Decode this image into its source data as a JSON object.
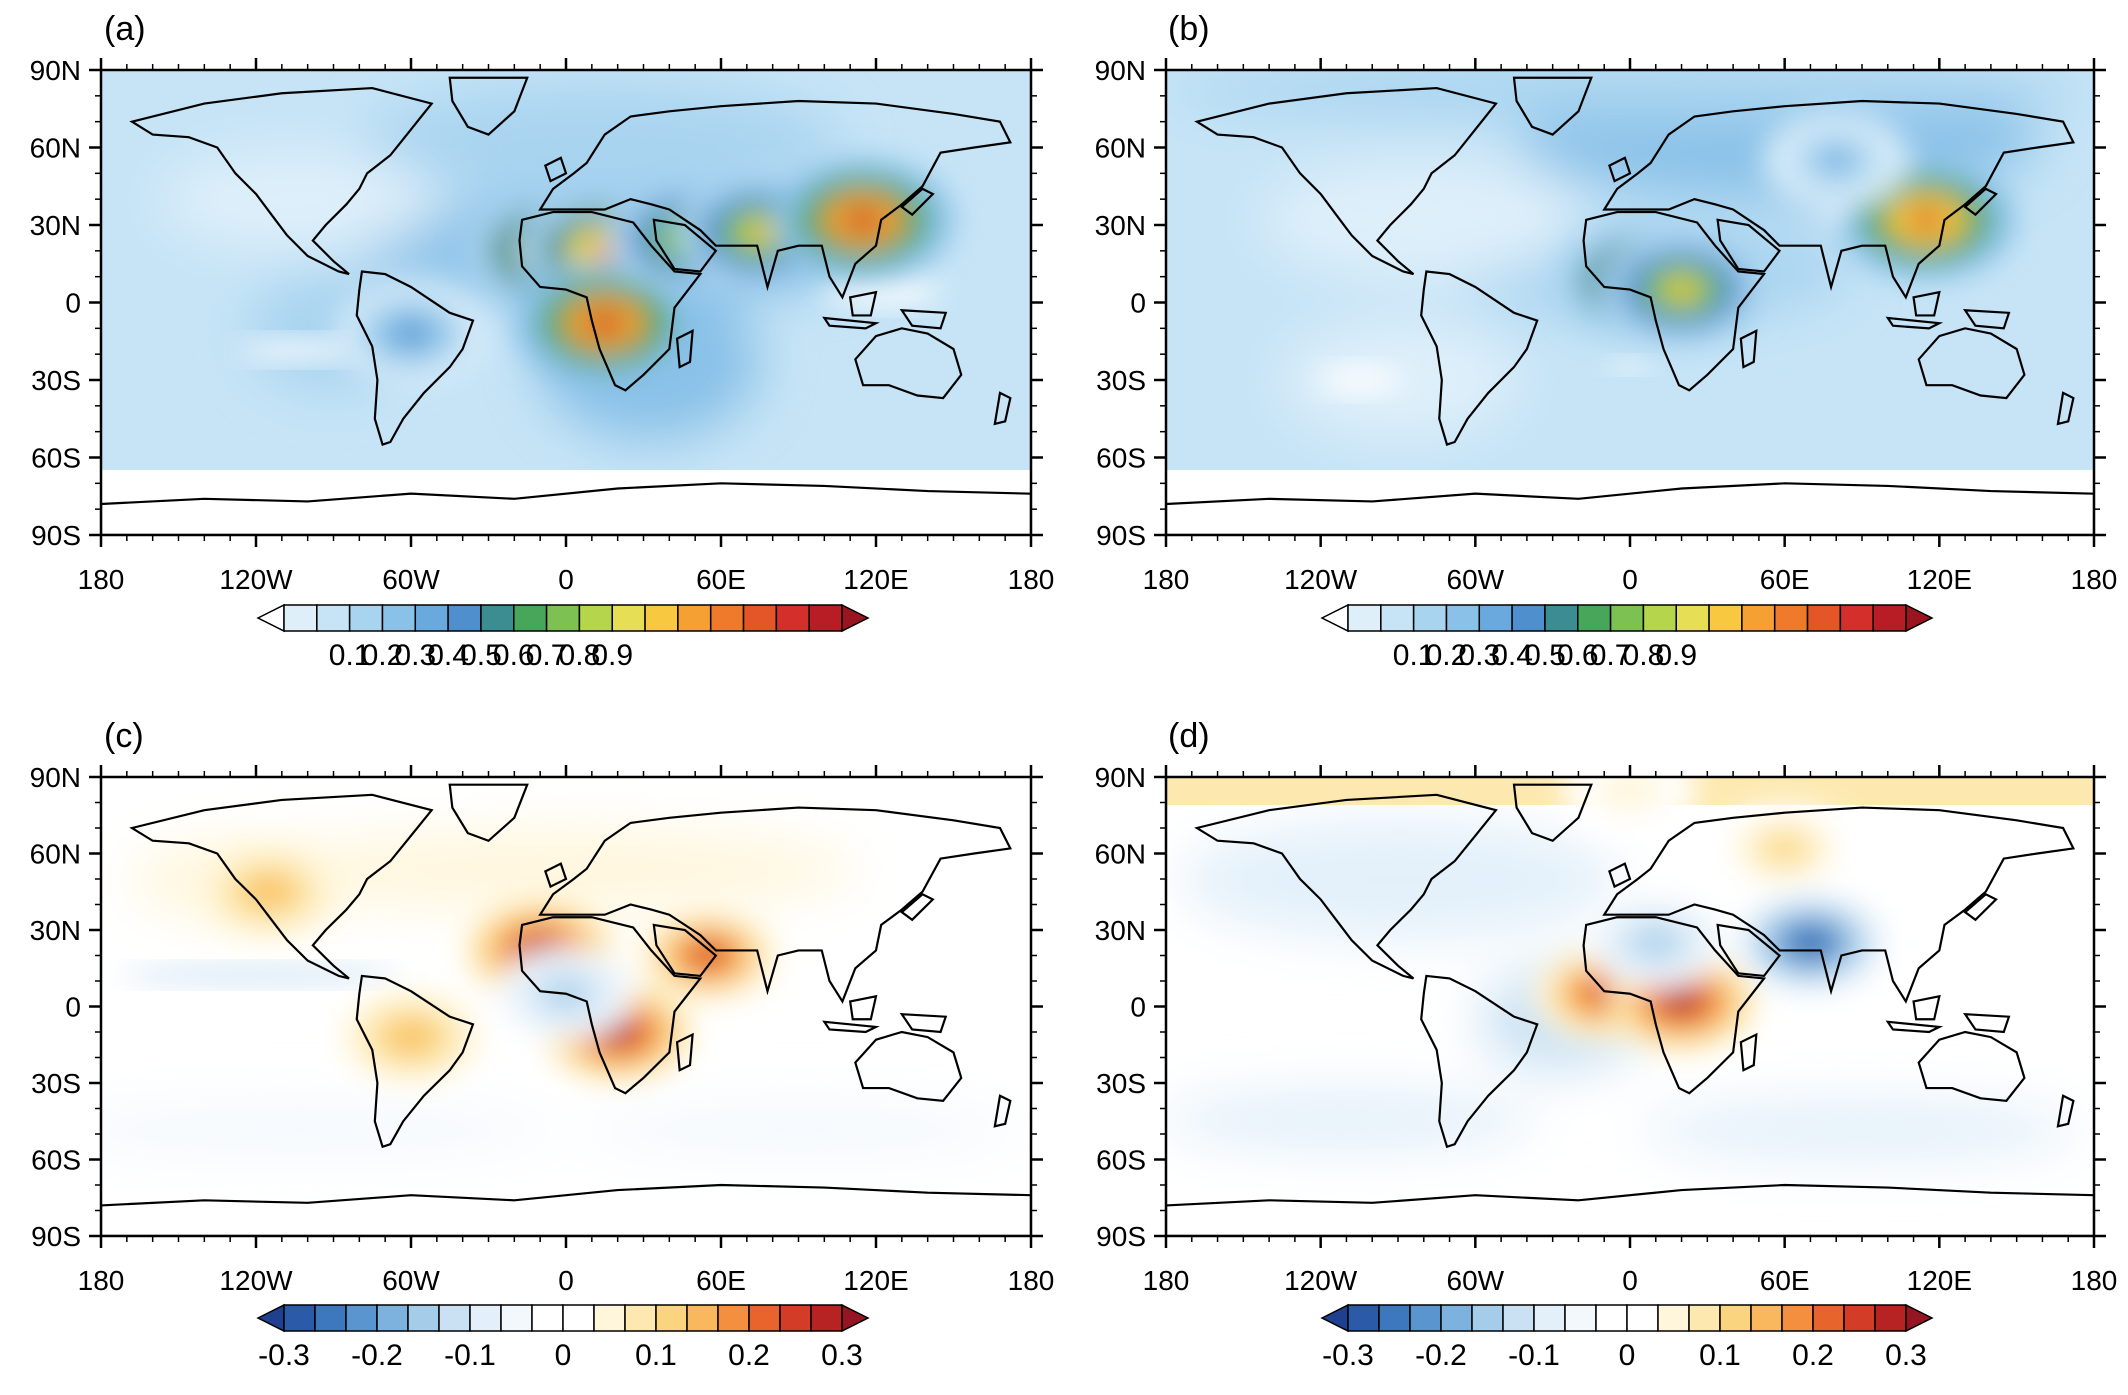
{
  "chart_data": [
    {
      "type": "heatmap",
      "panel_label": "(a)",
      "xticks": [
        "180",
        "120W",
        "60W",
        "0",
        "60E",
        "120E",
        "180"
      ],
      "yticks": [
        "90N",
        "60N",
        "30N",
        "0",
        "30S",
        "60S",
        "90S"
      ],
      "xlim": [
        -180,
        180
      ],
      "ylim": [
        -90,
        90
      ],
      "colorbar": {
        "labels": [
          "0.1",
          "0.2",
          "0.3",
          "0.4",
          "0.5",
          "0.6",
          "0.7",
          "0.8",
          "0.9"
        ],
        "colors": [
          "#ffffff",
          "#deeffa",
          "#c6e4f6",
          "#a9d4f0",
          "#89c1e8",
          "#6aa9dd",
          "#4f8fce",
          "#3c8d92",
          "#48a65a",
          "#7cc151",
          "#b5d54c",
          "#e6df55",
          "#f8c840",
          "#f5a033",
          "#ef7a2b",
          "#e45527",
          "#d42f2a",
          "#b81d25",
          "#9b1520"
        ]
      },
      "hotspots": [
        {
          "lon": -5,
          "lat": 20,
          "value": 0.75
        },
        {
          "lon": 15,
          "lat": 20,
          "value": 0.7
        },
        {
          "lon": 15,
          "lat": -8,
          "value": 0.85
        },
        {
          "lon": 48,
          "lat": 25,
          "value": 0.6
        },
        {
          "lon": 75,
          "lat": 27,
          "value": 0.6
        },
        {
          "lon": 115,
          "lat": 32,
          "value": 0.85
        },
        {
          "lon": -60,
          "lat": -12,
          "value": 0.3
        }
      ]
    },
    {
      "type": "heatmap",
      "panel_label": "(b)",
      "xticks": [
        "180",
        "120W",
        "60W",
        "0",
        "60E",
        "120E",
        "180"
      ],
      "yticks": [
        "90N",
        "60N",
        "30N",
        "0",
        "30S",
        "60S",
        "90S"
      ],
      "xlim": [
        -180,
        180
      ],
      "ylim": [
        -90,
        90
      ],
      "colorbar": {
        "labels": [
          "0.1",
          "0.2",
          "0.3",
          "0.4",
          "0.5",
          "0.6",
          "0.7",
          "0.8",
          "0.9"
        ],
        "colors": [
          "#ffffff",
          "#deeffa",
          "#c6e4f6",
          "#a9d4f0",
          "#89c1e8",
          "#6aa9dd",
          "#4f8fce",
          "#3c8d92",
          "#48a65a",
          "#7cc151",
          "#b5d54c",
          "#e6df55",
          "#f8c840",
          "#f5a033",
          "#ef7a2b",
          "#e45527",
          "#d42f2a",
          "#b81d25",
          "#9b1520"
        ]
      },
      "hotspots": [
        {
          "lon": 5,
          "lat": 8,
          "value": 0.7
        },
        {
          "lon": 20,
          "lat": 5,
          "value": 0.6
        },
        {
          "lon": 115,
          "lat": 32,
          "value": 0.8
        },
        {
          "lon": 80,
          "lat": 55,
          "value": 0.25
        }
      ]
    },
    {
      "type": "heatmap",
      "panel_label": "(c)",
      "xticks": [
        "180",
        "120W",
        "60W",
        "0",
        "60E",
        "120E",
        "180"
      ],
      "yticks": [
        "90N",
        "60N",
        "30N",
        "0",
        "30S",
        "60S",
        "90S"
      ],
      "xlim": [
        -180,
        180
      ],
      "ylim": [
        -90,
        90
      ],
      "colorbar": {
        "labels": [
          "-0.3",
          "-0.2",
          "-0.1",
          "0",
          "0.1",
          "0.2",
          "0.3"
        ],
        "colors": [
          "#1f3f8f",
          "#2a5aa8",
          "#3d77bd",
          "#5b95cf",
          "#7db1de",
          "#a5cce9",
          "#c9e1f3",
          "#e3f0fa",
          "#f3f8fd",
          "#ffffff",
          "#ffffff",
          "#fff6dc",
          "#fde9b0",
          "#fbd47f",
          "#f9b85d",
          "#f38f3e",
          "#e8642d",
          "#d33d27",
          "#b72223",
          "#951522"
        ]
      },
      "hotspots": [
        {
          "lon": -10,
          "lat": 22,
          "value": 0.3
        },
        {
          "lon": 20,
          "lat": -10,
          "value": 0.3
        },
        {
          "lon": 55,
          "lat": 20,
          "value": 0.25
        },
        {
          "lon": -60,
          "lat": -12,
          "value": 0.15
        },
        {
          "lon": -115,
          "lat": 45,
          "value": 0.15
        },
        {
          "lon": 0,
          "lat": 5,
          "value": -0.15
        }
      ]
    },
    {
      "type": "heatmap",
      "panel_label": "(d)",
      "xticks": [
        "180",
        "120W",
        "60W",
        "0",
        "60E",
        "120E",
        "180"
      ],
      "yticks": [
        "90N",
        "60N",
        "30N",
        "0",
        "30S",
        "60S",
        "90S"
      ],
      "xlim": [
        -180,
        180
      ],
      "ylim": [
        -90,
        90
      ],
      "colorbar": {
        "labels": [
          "-0.3",
          "-0.2",
          "-0.1",
          "0",
          "0.1",
          "0.2",
          "0.3"
        ],
        "colors": [
          "#1f3f8f",
          "#2a5aa8",
          "#3d77bd",
          "#5b95cf",
          "#7db1de",
          "#a5cce9",
          "#c9e1f3",
          "#e3f0fa",
          "#f3f8fd",
          "#ffffff",
          "#ffffff",
          "#fff6dc",
          "#fde9b0",
          "#fbd47f",
          "#f9b85d",
          "#f38f3e",
          "#e8642d",
          "#d33d27",
          "#b72223",
          "#951522"
        ]
      },
      "hotspots": [
        {
          "lon": -10,
          "lat": 5,
          "value": 0.25
        },
        {
          "lon": 20,
          "lat": 2,
          "value": 0.3
        },
        {
          "lon": 10,
          "lat": 25,
          "value": -0.15
        },
        {
          "lon": 70,
          "lat": 25,
          "value": -0.3
        },
        {
          "lon": 60,
          "lat": 62,
          "value": 0.1
        },
        {
          "lon": 0,
          "lat": 85,
          "value": 0.05
        }
      ]
    }
  ]
}
